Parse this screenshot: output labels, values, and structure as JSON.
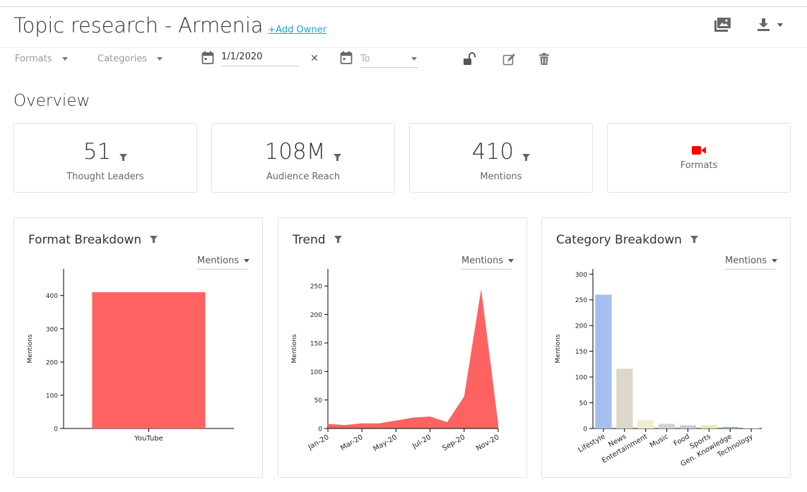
{
  "header": {
    "title": "Topic research - Armenia",
    "add_owner": "+Add Owner"
  },
  "filters": {
    "formats_label": "Formats",
    "categories_label": "Categories",
    "from_date": "1/1/2020",
    "to_placeholder": "To"
  },
  "overview": {
    "title": "Overview",
    "cards": [
      {
        "value": "51",
        "label": "Thought Leaders"
      },
      {
        "value": "108M",
        "label": "Audience Reach"
      },
      {
        "value": "410",
        "label": "Mentions"
      },
      {
        "label": "Formats",
        "icon": "video-camera-icon",
        "icon_color": "#ff0000"
      }
    ]
  },
  "panels": {
    "format": {
      "title": "Format Breakdown",
      "metric": "Mentions"
    },
    "trend": {
      "title": "Trend",
      "metric": "Mentions"
    },
    "category": {
      "title": "Category Breakdown",
      "metric": "Mentions"
    }
  },
  "chart_data": [
    {
      "type": "bar",
      "title": "Format Breakdown",
      "ylabel": "Mentions",
      "categories": [
        "YouTube"
      ],
      "values": [
        410
      ],
      "ylim": [
        0,
        480
      ],
      "yticks": [
        "0",
        "100",
        "200",
        "300",
        "400"
      ],
      "color": "#ff6361"
    },
    {
      "type": "area",
      "title": "Trend",
      "ylabel": "Mentions",
      "x": [
        "Jan-20",
        "Feb-20",
        "Mar-20",
        "Apr-20",
        "May-20",
        "Jun-20",
        "Jul-20",
        "Aug-20",
        "Sep-20",
        "Oct-20",
        "Nov-20"
      ],
      "xticks": [
        "Jan-20",
        "Mar-20",
        "May-20",
        "Jul-20",
        "Sep-20",
        "Nov-20"
      ],
      "values": [
        8,
        6,
        9,
        9,
        14,
        19,
        21,
        11,
        56,
        245,
        8
      ],
      "ylim": [
        0,
        280
      ],
      "yticks": [
        "0",
        "50",
        "100",
        "150",
        "200",
        "250"
      ],
      "color": "#ff6361"
    },
    {
      "type": "bar",
      "title": "Category Breakdown",
      "ylabel": "Mentions",
      "categories": [
        "Lifestyle",
        "News",
        "Entertainment",
        "Music",
        "Food",
        "Sports",
        "Gen. Knowledge",
        "Technology"
      ],
      "values": [
        260,
        116,
        16,
        9,
        6,
        6,
        3,
        1
      ],
      "colors": [
        "#a3bff0",
        "#dcd8c9",
        "#f0efcc",
        "#d2d1da",
        "#c1cbd9",
        "#e4e7a8",
        "#99b5b7",
        "#d6d6d6"
      ],
      "ylim": [
        0,
        310
      ],
      "yticks": [
        "0",
        "50",
        "100",
        "150",
        "200",
        "250",
        "300"
      ]
    }
  ]
}
